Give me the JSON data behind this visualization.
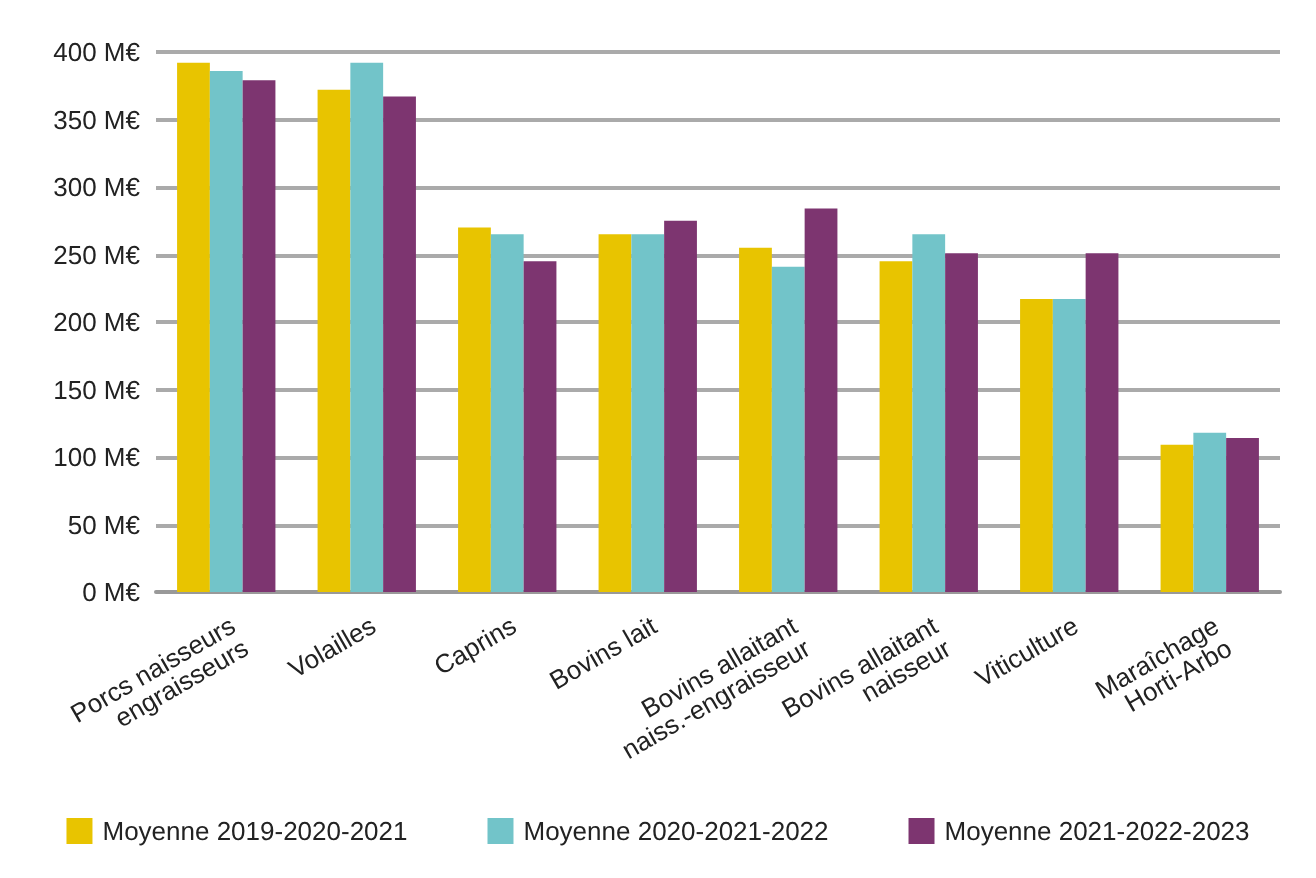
{
  "chart_data": {
    "type": "bar",
    "categories": [
      "Porcs naisseurs\nengraisseurs",
      "Volailles",
      "Caprins",
      "Bovins lait",
      "Bovins allaitant\nnaiss.-engraisseur",
      "Bovins allaitant\nnaisseur",
      "Viticulture",
      "Maraîchage\nHorti-Arbo"
    ],
    "series": [
      {
        "name": "Moyenne 2019-2020-2021",
        "color": "#e8c400",
        "values": [
          392,
          372,
          270,
          265,
          255,
          245,
          217,
          109
        ]
      },
      {
        "name": "Moyenne 2020-2021-2022",
        "color": "#72c4c9",
        "values": [
          386,
          392,
          265,
          265,
          241,
          265,
          217,
          118
        ]
      },
      {
        "name": "Moyenne 2021-2022-2023",
        "color": "#7d3570",
        "values": [
          379,
          367,
          245,
          275,
          284,
          251,
          251,
          114
        ]
      }
    ],
    "ylim": [
      0,
      400
    ],
    "yticks": [
      {
        "value": 0,
        "label": "0 M€"
      },
      {
        "value": 50,
        "label": "50 M€"
      },
      {
        "value": 100,
        "label": "100 M€"
      },
      {
        "value": 150,
        "label": "150 M€"
      },
      {
        "value": 200,
        "label": "200 M€"
      },
      {
        "value": 250,
        "label": "250 M€"
      },
      {
        "value": 300,
        "label": "300 M€"
      },
      {
        "value": 350,
        "label": "350 M€"
      },
      {
        "value": 400,
        "label": "400 M€"
      }
    ],
    "grid": true,
    "legend": "bottom"
  }
}
